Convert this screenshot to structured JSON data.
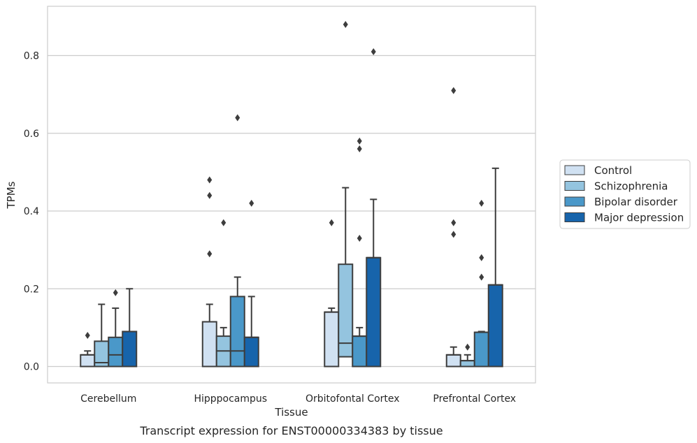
{
  "caption": "Transcript expression for ENST00000334383 by tissue",
  "chart_data": {
    "type": "box",
    "title": "",
    "xlabel": "Tissue",
    "ylabel": "TPMs",
    "ylim": [
      -0.042,
      0.927
    ],
    "yticks": [
      0.0,
      0.2,
      0.4,
      0.6,
      0.8
    ],
    "ytick_labels": [
      "0.0",
      "0.2",
      "0.4",
      "0.6",
      "0.8"
    ],
    "grid": "horizontal",
    "legend_position": "right",
    "categories": [
      "Cerebellum",
      "Hipppocampus",
      "Orbitofontal Cortex",
      "Prefrontal Cortex"
    ],
    "series": [
      {
        "name": "Control",
        "color": "#d0e1f2",
        "boxes": [
          {
            "q1": 0.0,
            "median": 0.03,
            "q3": 0.03,
            "whisker_low": 0.0,
            "whisker_high": 0.04,
            "outliers": [
              0.08
            ]
          },
          {
            "q1": 0.0,
            "median": 0.115,
            "q3": 0.115,
            "whisker_low": 0.0,
            "whisker_high": 0.16,
            "outliers": [
              0.29,
              0.44,
              0.48
            ]
          },
          {
            "q1": 0.0,
            "median": 0.14,
            "q3": 0.14,
            "whisker_low": 0.0,
            "whisker_high": 0.15,
            "outliers": [
              0.37
            ]
          },
          {
            "q1": 0.0,
            "median": 0.03,
            "q3": 0.03,
            "whisker_low": 0.0,
            "whisker_high": 0.05,
            "outliers": [
              0.34,
              0.37,
              0.71
            ]
          }
        ]
      },
      {
        "name": "Schizophrenia",
        "color": "#94c4df",
        "boxes": [
          {
            "q1": 0.0,
            "median": 0.01,
            "q3": 0.065,
            "whisker_low": 0.0,
            "whisker_high": 0.16,
            "outliers": []
          },
          {
            "q1": 0.0,
            "median": 0.04,
            "q3": 0.078,
            "whisker_low": 0.0,
            "whisker_high": 0.1,
            "outliers": [
              0.37
            ]
          },
          {
            "q1": 0.025,
            "median": 0.06,
            "q3": 0.263,
            "whisker_low": 0.0,
            "whisker_high": 0.46,
            "outliers": [
              0.88
            ]
          },
          {
            "q1": 0.0,
            "median": 0.015,
            "q3": 0.015,
            "whisker_low": 0.0,
            "whisker_high": 0.03,
            "outliers": [
              0.05
            ]
          }
        ]
      },
      {
        "name": "Bipolar disorder",
        "color": "#4a98c9",
        "boxes": [
          {
            "q1": 0.0,
            "median": 0.03,
            "q3": 0.075,
            "whisker_low": 0.0,
            "whisker_high": 0.15,
            "outliers": [
              0.19
            ]
          },
          {
            "q1": 0.0,
            "median": 0.04,
            "q3": 0.18,
            "whisker_low": 0.0,
            "whisker_high": 0.23,
            "outliers": [
              0.64
            ]
          },
          {
            "q1": 0.0,
            "median": 0.078,
            "q3": 0.078,
            "whisker_low": 0.0,
            "whisker_high": 0.1,
            "outliers": [
              0.33,
              0.56,
              0.58
            ]
          },
          {
            "q1": 0.0,
            "median": 0.088,
            "q3": 0.088,
            "whisker_low": 0.0,
            "whisker_high": 0.09,
            "outliers": [
              0.23,
              0.28,
              0.42
            ]
          }
        ]
      },
      {
        "name": "Major depression",
        "color": "#1764ab",
        "boxes": [
          {
            "q1": 0.0,
            "median": 0.09,
            "q3": 0.09,
            "whisker_low": 0.0,
            "whisker_high": 0.2,
            "outliers": []
          },
          {
            "q1": 0.0,
            "median": 0.075,
            "q3": 0.075,
            "whisker_low": 0.0,
            "whisker_high": 0.18,
            "outliers": [
              0.42
            ]
          },
          {
            "q1": 0.0,
            "median": 0.28,
            "q3": 0.28,
            "whisker_low": 0.0,
            "whisker_high": 0.43,
            "outliers": [
              0.81
            ]
          },
          {
            "q1": 0.0,
            "median": 0.21,
            "q3": 0.21,
            "whisker_low": 0.0,
            "whisker_high": 0.51,
            "outliers": []
          }
        ]
      }
    ]
  }
}
